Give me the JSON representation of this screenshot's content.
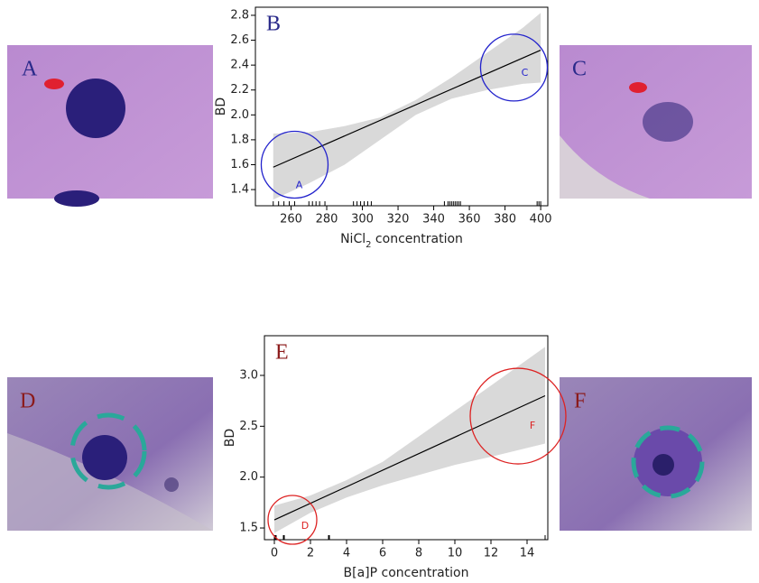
{
  "photos": [
    {
      "label": "A"
    },
    {
      "label": "C"
    },
    {
      "label": "D"
    },
    {
      "label": "F"
    }
  ],
  "chart_data": [
    {
      "type": "line",
      "panel_label": "B",
      "ylabel": "BD",
      "xlabel": {
        "text": "NiCl",
        "sub": "2",
        "rest": " concentration"
      },
      "xlim": [
        240,
        404
      ],
      "xticks": [
        260,
        280,
        300,
        320,
        340,
        360,
        380,
        400
      ],
      "ylim": [
        1.27,
        2.865
      ],
      "yticks": [
        1.4,
        1.6,
        1.8,
        {
          "value": 2,
          "label": "2.0"
        },
        2.2,
        2.4,
        2.6,
        2.8
      ],
      "x": [
        250,
        400
      ],
      "values": [
        1.58,
        2.52
      ],
      "color": "#000000",
      "band": {
        "color": "#d9d9d9",
        "x": [
          250,
          270,
          290,
          310,
          330,
          350,
          370,
          390,
          400
        ],
        "upper": [
          1.85,
          1.86,
          1.91,
          1.98,
          2.12,
          2.3,
          2.5,
          2.7,
          2.82
        ],
        "lower": [
          1.32,
          1.45,
          1.6,
          1.8,
          2.0,
          2.13,
          2.2,
          2.25,
          2.26
        ]
      },
      "rug": [
        250,
        253,
        256,
        259,
        262,
        270,
        272,
        274,
        276,
        279,
        295,
        297,
        299,
        301,
        303,
        305,
        346,
        348,
        349,
        350,
        351,
        352,
        353,
        354,
        355,
        398,
        399,
        400
      ],
      "annotation_color": "#2222cc",
      "label_color": "#2a2a8a",
      "annotations": [
        {
          "text": "A",
          "x": 262,
          "y": 1.6
        },
        {
          "text": "C",
          "x": 385,
          "y": 2.38
        }
      ]
    },
    {
      "type": "line",
      "panel_label": "E",
      "ylabel": "BD",
      "xlabel": {
        "text": "B[a]P concentration"
      },
      "xlim": [
        -0.55,
        15.15
      ],
      "xticks": [
        0,
        2,
        4,
        6,
        8,
        10,
        12,
        14
      ],
      "ylim": [
        1.385,
        3.39
      ],
      "yticks": [
        1.5,
        {
          "value": 2,
          "label": "2.0"
        },
        2.5,
        {
          "value": 3,
          "label": "3.0"
        }
      ],
      "x": [
        0,
        15
      ],
      "values": [
        1.58,
        2.8
      ],
      "color": "#000000",
      "band": {
        "color": "#d9d9d9",
        "x": [
          0,
          2,
          4,
          6,
          8,
          10,
          12,
          15
        ],
        "upper": [
          1.72,
          1.82,
          1.97,
          2.15,
          2.4,
          2.65,
          2.9,
          3.28
        ],
        "lower": [
          1.45,
          1.65,
          1.8,
          1.92,
          2.02,
          2.12,
          2.2,
          2.33
        ]
      },
      "rug": [
        0,
        0.05,
        0.1,
        0.5,
        0.55,
        3,
        3.05,
        15
      ],
      "annotation_color": "#dd2222",
      "label_color": "#8b1a1a",
      "annotations": [
        {
          "text": "D",
          "x": 1,
          "y": 1.58
        },
        {
          "text": "F",
          "x": 13.5,
          "y": 2.6
        }
      ]
    }
  ]
}
